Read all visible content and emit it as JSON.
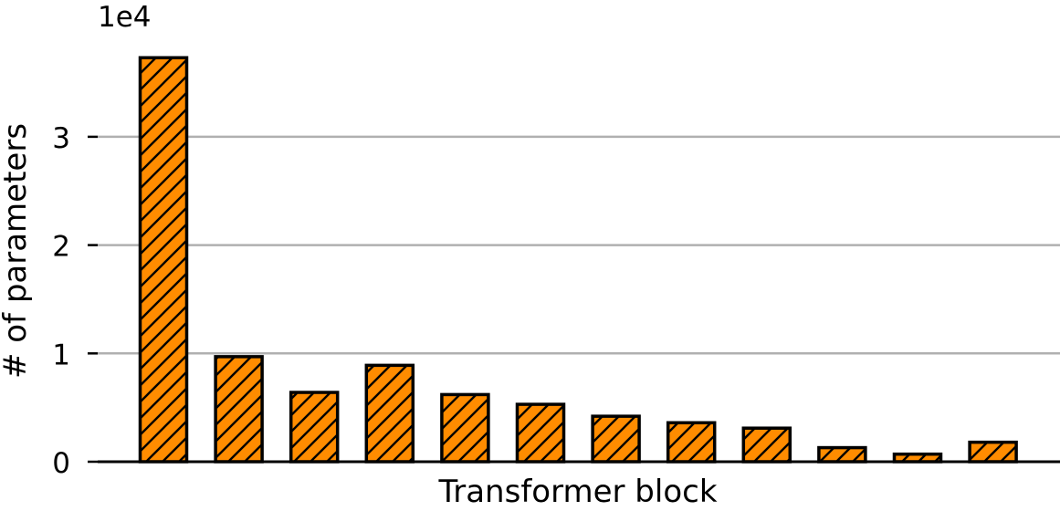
{
  "chart_data": {
    "type": "bar",
    "title": "",
    "xlabel": "Transformer block",
    "ylabel": "# of parameters",
    "offset_label": "1e4",
    "ylim": [
      0,
      3.8
    ],
    "yticks": [
      0,
      1,
      2,
      3
    ],
    "ytick_labels": [
      "0",
      "1",
      "2",
      "3"
    ],
    "x_ticks_shown": false,
    "grid": "horizontal",
    "legend": "none",
    "values": [
      3.73,
      0.97,
      0.64,
      0.89,
      0.62,
      0.53,
      0.42,
      0.36,
      0.31,
      0.13,
      0.07,
      0.18
    ],
    "colors": {
      "bar_fill": "#ff8c00",
      "bar_edge": "#000000",
      "hatch": "#000000",
      "grid": "#b0b0b0",
      "axis": "#000000"
    }
  }
}
